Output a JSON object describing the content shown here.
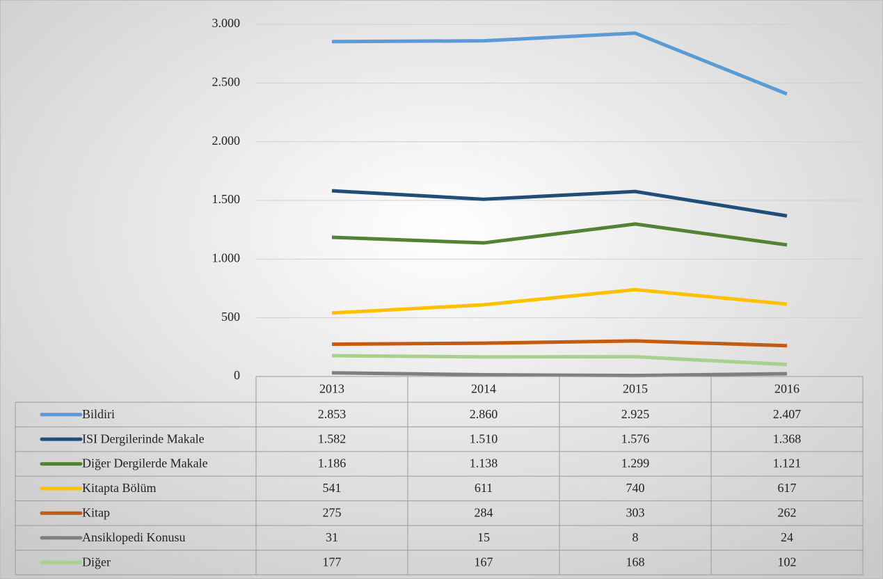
{
  "chart_data": {
    "type": "line",
    "categories": [
      "2013",
      "2014",
      "2015",
      "2016"
    ],
    "ylim": [
      0,
      3000
    ],
    "yticks": [
      0,
      500,
      {
        "value": 1000,
        "label": "1.000"
      },
      {
        "value": 1500,
        "label": "1.500"
      },
      {
        "value": 2000,
        "label": "2.000"
      },
      {
        "value": 2500,
        "label": "2.500"
      },
      {
        "value": 3000,
        "label": "3.000"
      }
    ],
    "grid": true,
    "series": [
      {
        "name": "Bildiri",
        "color": "#5b9bd5",
        "values": [
          2853,
          2860,
          2925,
          2407
        ],
        "value_labels": [
          "2.853",
          "2.860",
          "2.925",
          "2.407"
        ]
      },
      {
        "name": "ISI Dergilerinde Makale",
        "color": "#1f4e79",
        "values": [
          1582,
          1510,
          1576,
          1368
        ],
        "value_labels": [
          "1.582",
          "1.510",
          "1.576",
          "1.368"
        ]
      },
      {
        "name": "Diğer Dergilerde Makale",
        "color": "#548235",
        "values": [
          1186,
          1138,
          1299,
          1121
        ],
        "value_labels": [
          "1.186",
          "1.138",
          "1.299",
          "1.121"
        ]
      },
      {
        "name": "Kitapta Bölüm",
        "color": "#ffc000",
        "values": [
          541,
          611,
          740,
          617
        ]
      },
      {
        "name": "Kitap",
        "color": "#c55a11",
        "values": [
          275,
          284,
          303,
          262
        ]
      },
      {
        "name": "Ansiklopedi Konusu",
        "color": "#7f7f7f",
        "values": [
          31,
          15,
          8,
          24
        ]
      },
      {
        "name": "Diğer",
        "color": "#a9d18e",
        "values": [
          177,
          167,
          168,
          102
        ]
      }
    ]
  }
}
